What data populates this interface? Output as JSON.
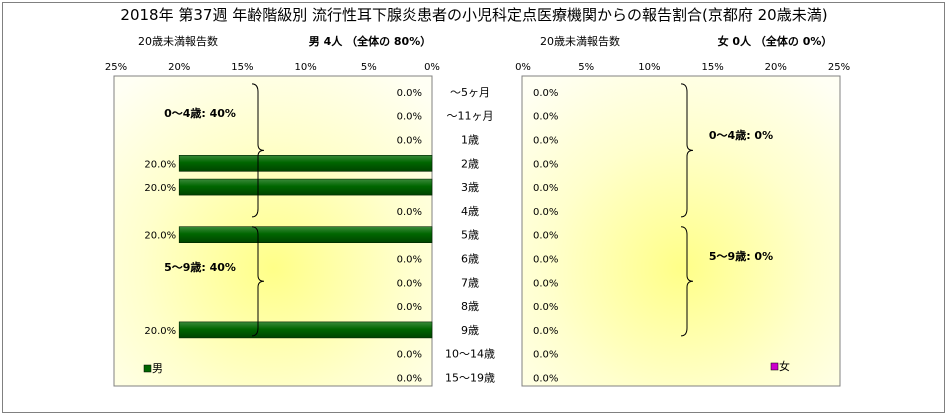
{
  "title": "2018年 第37週 年齢階級別 流行性耳下腺炎患者の小児科定点医療機関からの報告割合(京都府 20歳未満)",
  "colors": {
    "male": "#006600",
    "female": "#cc00cc",
    "panel_glow": "#ffff99",
    "panel_base": "#ffffe6"
  },
  "chart_data": [
    {
      "type": "bar",
      "orientation": "horizontal",
      "direction": "right-to-left",
      "header_left": "20歳未満報告数",
      "header_right": "男  4人 （全体の  80%）",
      "categories": [
        "～5ヶ月",
        "～11ヶ月",
        "1歳",
        "2歳",
        "3歳",
        "4歳",
        "5歳",
        "6歳",
        "7歳",
        "8歳",
        "9歳",
        "10～14歳",
        "15～19歳"
      ],
      "series": [
        {
          "name": "男",
          "values": [
            0,
            0,
            0,
            20,
            20,
            0,
            20,
            0,
            0,
            0,
            20,
            0,
            0
          ]
        }
      ],
      "data_labels": [
        "0.0%",
        "0.0%",
        "0.0%",
        "20.0%",
        "20.0%",
        "0.0%",
        "20.0%",
        "0.0%",
        "0.0%",
        "0.0%",
        "20.0%",
        "0.0%",
        "0.0%"
      ],
      "xlim": [
        0,
        25
      ],
      "ticks": [
        25,
        20,
        15,
        10,
        5,
        0
      ],
      "tick_labels": [
        "25%",
        "20%",
        "15%",
        "10%",
        "5%",
        "0%"
      ],
      "groups": [
        {
          "label": "0～4歳: 40%",
          "from": 0,
          "to": 5
        },
        {
          "label": "5～9歳: 40%",
          "from": 6,
          "to": 10
        }
      ],
      "legend_position": "bottom-left",
      "grid": false
    },
    {
      "type": "bar",
      "orientation": "horizontal",
      "direction": "left-to-right",
      "header_left": "20歳未満報告数",
      "header_right": "女  0人 （全体の   0%）",
      "categories": [
        "～5ヶ月",
        "～11ヶ月",
        "1歳",
        "2歳",
        "3歳",
        "4歳",
        "5歳",
        "6歳",
        "7歳",
        "8歳",
        "9歳",
        "10～14歳",
        "15～19歳"
      ],
      "series": [
        {
          "name": "女",
          "values": [
            0,
            0,
            0,
            0,
            0,
            0,
            0,
            0,
            0,
            0,
            0,
            0,
            0
          ]
        }
      ],
      "data_labels": [
        "0.0%",
        "0.0%",
        "0.0%",
        "0.0%",
        "0.0%",
        "0.0%",
        "0.0%",
        "0.0%",
        "0.0%",
        "0.0%",
        "0.0%",
        "0.0%",
        "0.0%"
      ],
      "xlim": [
        0,
        25
      ],
      "ticks": [
        0,
        5,
        10,
        15,
        20,
        25
      ],
      "tick_labels": [
        "0%",
        "5%",
        "10%",
        "15%",
        "20%",
        "25%"
      ],
      "groups": [
        {
          "label": "0～4歳: 0%",
          "from": 0,
          "to": 5
        },
        {
          "label": "5～9歳: 0%",
          "from": 6,
          "to": 10
        }
      ],
      "legend_position": "bottom-right",
      "grid": false
    }
  ]
}
